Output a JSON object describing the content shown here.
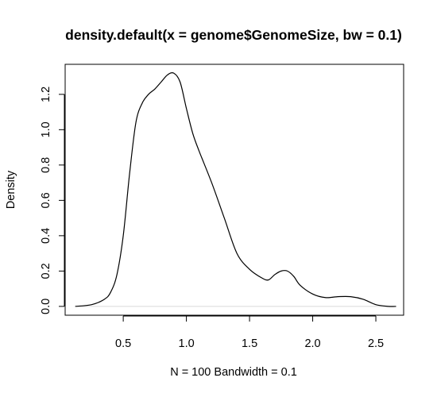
{
  "chart_data": {
    "type": "line",
    "title": "density.default(x = genome$GenomeSize, bw = 0.1)",
    "xlabel": "N = 100   Bandwidth = 0.1",
    "ylabel": "Density",
    "xlim": [
      0.04,
      2.72
    ],
    "ylim": [
      -0.05,
      1.37
    ],
    "x_ticks": [
      0.5,
      1.0,
      1.5,
      2.0,
      2.5
    ],
    "x_tick_labels": [
      "0.5",
      "1.0",
      "1.5",
      "2.0",
      "2.5"
    ],
    "y_ticks": [
      0.0,
      0.2,
      0.4,
      0.6,
      0.8,
      1.0,
      1.2
    ],
    "y_tick_labels": [
      "0.0",
      "0.2",
      "0.4",
      "0.6",
      "0.8",
      "1.0",
      "1.2"
    ],
    "grid": false,
    "series": [
      {
        "x": [
          0.12,
          0.25,
          0.35,
          0.4,
          0.45,
          0.5,
          0.55,
          0.6,
          0.65,
          0.7,
          0.75,
          0.8,
          0.85,
          0.9,
          0.95,
          1.0,
          1.05,
          1.1,
          1.2,
          1.3,
          1.4,
          1.5,
          1.6,
          1.65,
          1.7,
          1.75,
          1.8,
          1.85,
          1.9,
          2.0,
          2.1,
          2.2,
          2.3,
          2.4,
          2.5,
          2.6,
          2.66
        ],
        "y": [
          0.0,
          0.01,
          0.04,
          0.08,
          0.18,
          0.4,
          0.75,
          1.04,
          1.15,
          1.2,
          1.23,
          1.27,
          1.31,
          1.32,
          1.27,
          1.12,
          0.98,
          0.88,
          0.7,
          0.5,
          0.3,
          0.21,
          0.16,
          0.15,
          0.18,
          0.2,
          0.2,
          0.17,
          0.12,
          0.07,
          0.05,
          0.055,
          0.055,
          0.04,
          0.01,
          0.0,
          0.0
        ]
      }
    ]
  }
}
